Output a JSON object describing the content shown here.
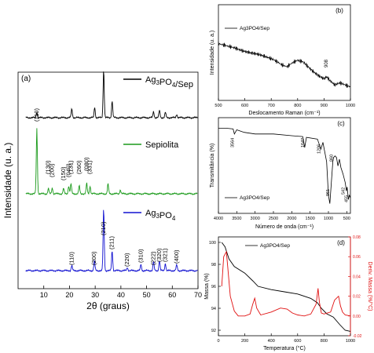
{
  "colors": {
    "black": "#000000",
    "green": "#1a9a1a",
    "blue": "#1010d0",
    "red": "#e01010"
  },
  "chart_data": [
    {
      "panel": "(a)",
      "type": "line",
      "xlabel": "2θ (graus)",
      "ylabel": "Intensidade (u. a.)",
      "xlim": [
        0,
        70
      ],
      "xticks": [
        10,
        20,
        30,
        40,
        50,
        60,
        70
      ],
      "series": [
        {
          "name": "Ag3PO4/Sep",
          "color": "#000000",
          "peaks": [
            [
              7.3,
              0.12
            ],
            [
              20.9,
              0.18
            ],
            [
              29.8,
              0.22
            ],
            [
              33.3,
              1.0
            ],
            [
              36.6,
              0.35
            ],
            [
              52.7,
              0.13
            ],
            [
              55.0,
              0.15
            ],
            [
              57.3,
              0.11
            ],
            [
              61.7,
              0.07
            ]
          ]
        },
        {
          "name": "Sepiolita",
          "color": "#1a9a1a",
          "peaks": [
            [
              7.3,
              1.0
            ],
            [
              11.8,
              0.08
            ],
            [
              13.3,
              0.09
            ],
            [
              17.7,
              0.08
            ],
            [
              19.7,
              0.12
            ],
            [
              20.6,
              0.15
            ],
            [
              23.8,
              0.12
            ],
            [
              26.7,
              0.16
            ],
            [
              28.0,
              0.12
            ],
            [
              35.0,
              0.15
            ],
            [
              39.8,
              0.06
            ]
          ]
        },
        {
          "name": "Ag3PO4",
          "color": "#1010d0",
          "peaks": [
            [
              20.9,
              0.08
            ],
            [
              29.7,
              0.16
            ],
            [
              33.3,
              1.0
            ],
            [
              36.6,
              0.32
            ],
            [
              42.5,
              0.05
            ],
            [
              47.8,
              0.1
            ],
            [
              52.7,
              0.14
            ],
            [
              55.0,
              0.16
            ],
            [
              57.3,
              0.12
            ],
            [
              61.7,
              0.09
            ]
          ]
        }
      ],
      "annotations": {
        "sepiolita": [
          {
            "x": 7.3,
            "label": "(110)"
          },
          {
            "x": 11.8,
            "label": "(130)"
          },
          {
            "x": 13.3,
            "label": "(200)"
          },
          {
            "x": 17.7,
            "label": "(150)"
          },
          {
            "x": 19.7,
            "label": "(040)"
          },
          {
            "x": 20.6,
            "label": "(131)"
          },
          {
            "x": 23.8,
            "label": "(260)"
          },
          {
            "x": 26.7,
            "label": "(080)"
          },
          {
            "x": 28.0,
            "label": "(331)"
          }
        ],
        "ag3po4": [
          {
            "x": 20.9,
            "label": "(110)"
          },
          {
            "x": 29.7,
            "label": "(200)"
          },
          {
            "x": 33.3,
            "label": "(210)"
          },
          {
            "x": 36.6,
            "label": "(211)"
          },
          {
            "x": 42.5,
            "label": "(220)"
          },
          {
            "x": 47.8,
            "label": "(310)"
          },
          {
            "x": 52.7,
            "label": "(222)"
          },
          {
            "x": 55.0,
            "label": "(320)"
          },
          {
            "x": 57.3,
            "label": "(321)"
          },
          {
            "x": 61.7,
            "label": "(400)"
          }
        ]
      }
    },
    {
      "panel": "(b)",
      "type": "line",
      "xlabel": "Deslocamento Raman (cm⁻¹)",
      "ylabel": "Intensidade (u. a.)",
      "xlim": [
        500,
        1000
      ],
      "xticks": [
        500,
        600,
        700,
        800,
        900,
        1000
      ],
      "series": [
        {
          "name": "Ag3PO4/Sep",
          "color": "#000000",
          "x": [
            500,
            530,
            560,
            590,
            620,
            650,
            680,
            710,
            740,
            760,
            780,
            800,
            820,
            840,
            860,
            880,
            900,
            910,
            920,
            940,
            960,
            980,
            1000
          ],
          "y": [
            0.88,
            0.84,
            0.8,
            0.74,
            0.7,
            0.67,
            0.62,
            0.56,
            0.46,
            0.42,
            0.5,
            0.55,
            0.52,
            0.42,
            0.32,
            0.24,
            0.18,
            0.22,
            0.16,
            0.06,
            0.1,
            0.06,
            0.02
          ]
        }
      ],
      "annotations": [
        {
          "x": 908,
          "label": "908"
        }
      ]
    },
    {
      "panel": "(c)",
      "type": "line",
      "xlabel": "Número de onda (cm⁻¹)",
      "ylabel": "Transmitância (%)",
      "xlim": [
        4000,
        400
      ],
      "xticks": [
        4000,
        3500,
        3000,
        2500,
        2000,
        1500,
        1000,
        500
      ],
      "series": [
        {
          "name": "Ag3PO4/Sep",
          "color": "#000000",
          "x": [
            4000,
            3800,
            3600,
            3564,
            3500,
            3300,
            3000,
            2500,
            2000,
            1700,
            1647,
            1600,
            1300,
            1206,
            1150,
            1050,
            1000,
            961,
            920,
            880,
            860,
            820,
            780,
            740,
            700,
            660,
            600,
            542,
            510,
            490,
            455,
            430,
            400
          ],
          "y": [
            0.95,
            0.95,
            0.94,
            0.88,
            0.93,
            0.9,
            0.88,
            0.88,
            0.86,
            0.85,
            0.72,
            0.84,
            0.82,
            0.7,
            0.78,
            0.55,
            0.15,
            0.05,
            0.3,
            0.55,
            0.6,
            0.62,
            0.6,
            0.5,
            0.58,
            0.48,
            0.4,
            0.3,
            0.2,
            0.25,
            0.1,
            0.15,
            0.12
          ]
        }
      ],
      "annotations": [
        {
          "x": 3564,
          "label": "3564"
        },
        {
          "x": 1647,
          "label": "1647"
        },
        {
          "x": 1206,
          "label": "1206"
        },
        {
          "x": 961,
          "label": "961"
        },
        {
          "x": 860,
          "label": "860"
        },
        {
          "x": 542,
          "label": "542"
        },
        {
          "x": 455,
          "label": "455"
        }
      ]
    },
    {
      "panel": "(d)",
      "type": "line",
      "xlabel": "Temperatura (°C)",
      "ylabel": "Massa (%)",
      "ylabel_right": "Deriv. Massa (%/°C)",
      "xlim": [
        0,
        1000
      ],
      "ylim": [
        91.5,
        100.5
      ],
      "ylim_right": [
        -0.02,
        0.08
      ],
      "xticks": [
        0,
        200,
        400,
        600,
        800,
        1000
      ],
      "yticks": [
        92,
        94,
        96,
        98,
        100
      ],
      "yticks_right": [
        -0.02,
        0.0,
        0.02,
        0.04,
        0.06,
        0.08
      ],
      "series": [
        {
          "name": "Ag3PO4/Sep",
          "axis": "left",
          "color": "#000000",
          "x": [
            25,
            50,
            80,
            120,
            200,
            260,
            300,
            400,
            500,
            600,
            700,
            750,
            780,
            820,
            870,
            920,
            960,
            1000
          ],
          "y": [
            100,
            99.6,
            98.5,
            97.8,
            97.2,
            96.5,
            96.0,
            95.7,
            95.5,
            95.3,
            94.9,
            94.5,
            94.0,
            93.5,
            93.2,
            92.5,
            92.0,
            91.9
          ]
        },
        {
          "name": "Deriv. Massa",
          "axis": "right",
          "color": "#e01010",
          "x": [
            25,
            40,
            60,
            70,
            90,
            120,
            150,
            200,
            240,
            260,
            275,
            290,
            320,
            400,
            470,
            520,
            560,
            600,
            650,
            700,
            740,
            755,
            765,
            780,
            800,
            850,
            880,
            910,
            925,
            940,
            960,
            1000
          ],
          "y": [
            0.03,
            0.06,
            0.065,
            0.05,
            0.02,
            0.005,
            0.0,
            0.0,
            0.002,
            0.012,
            0.018,
            0.008,
            0.001,
            0.004,
            0.008,
            0.007,
            0.003,
            0.001,
            0.0,
            0.002,
            0.012,
            0.028,
            0.014,
            0.003,
            0.002,
            0.004,
            0.016,
            0.02,
            0.01,
            0.004,
            0.001,
            0.0
          ]
        }
      ]
    }
  ]
}
